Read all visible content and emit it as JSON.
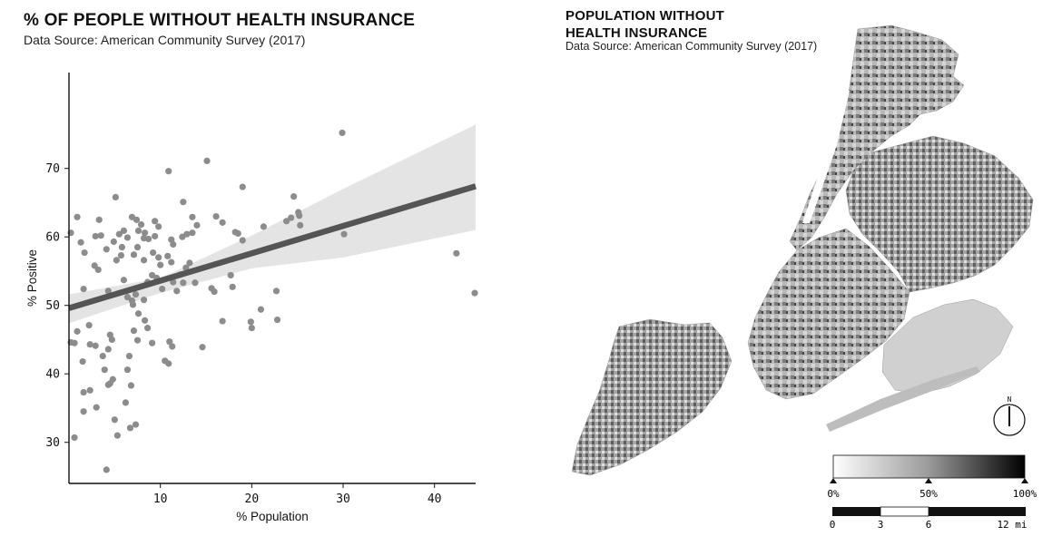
{
  "left_panel": {
    "title": "% OF PEOPLE WITHOUT HEALTH INSURANCE",
    "source": "Data Source: American Community Survey (2017)"
  },
  "right_panel": {
    "title_line1": "POPULATION WITHOUT",
    "title_line2": "HEALTH INSURANCE",
    "source": "Data Source: American Community Survey (2017)",
    "north_label": "N",
    "colorbar_ticks": [
      "0%",
      "50%",
      "100%"
    ],
    "scalebar_ticks": [
      "0",
      "3",
      "6",
      "12 mi"
    ]
  },
  "colors": {
    "points": "#8c8c8c",
    "regression": "#555555",
    "ci_band": "#e4e4e4",
    "axis": "#111111"
  },
  "chart_data": {
    "type": "scatter",
    "title": "% OF PEOPLE WITHOUT HEALTH INSURANCE",
    "xlabel": "% Population",
    "ylabel": "% Positive",
    "xlim": [
      0,
      44.5
    ],
    "ylim": [
      24,
      84
    ],
    "xticks": [
      10,
      20,
      30,
      40
    ],
    "yticks": [
      30,
      40,
      50,
      60,
      70
    ],
    "regression": {
      "x": [
        0,
        44.5
      ],
      "y": [
        49.6,
        67.4
      ]
    },
    "ci_band": {
      "x": [
        0,
        10,
        20,
        30,
        44.5
      ],
      "upper": [
        51.6,
        54.0,
        60.2,
        67.0,
        76.4
      ],
      "lower": [
        47.4,
        51.8,
        55.4,
        57.0,
        61.0
      ]
    },
    "points": [
      [
        0.2,
        60.6
      ],
      [
        0.9,
        62.9
      ],
      [
        1.3,
        59.2
      ],
      [
        1.7,
        57.7
      ],
      [
        1.6,
        52.4
      ],
      [
        0.9,
        46.2
      ],
      [
        0.6,
        44.5
      ],
      [
        0.2,
        44.6
      ],
      [
        0.6,
        30.7
      ],
      [
        1.5,
        41.8
      ],
      [
        1.6,
        37.3
      ],
      [
        1.6,
        34.5
      ],
      [
        2.2,
        47.1
      ],
      [
        2.3,
        44.3
      ],
      [
        2.9,
        44.1
      ],
      [
        3.0,
        35.1
      ],
      [
        2.3,
        37.6
      ],
      [
        2.8,
        55.8
      ],
      [
        3.2,
        55.2
      ],
      [
        3.3,
        62.5
      ],
      [
        2.9,
        60.1
      ],
      [
        3.5,
        60.2
      ],
      [
        4.1,
        58.2
      ],
      [
        4.3,
        52.1
      ],
      [
        3.7,
        42.6
      ],
      [
        3.9,
        40.6
      ],
      [
        4.3,
        43.6
      ],
      [
        4.3,
        38.4
      ],
      [
        4.5,
        45.7
      ],
      [
        4.5,
        38.6
      ],
      [
        4.7,
        45.0
      ],
      [
        4.8,
        39.2
      ],
      [
        4.1,
        26.0
      ],
      [
        5.0,
        33.3
      ],
      [
        5.3,
        31.0
      ],
      [
        5.1,
        65.8
      ],
      [
        4.9,
        59.3
      ],
      [
        5.5,
        60.4
      ],
      [
        5.7,
        57.3
      ],
      [
        5.2,
        56.6
      ],
      [
        5.8,
        58.5
      ],
      [
        6.0,
        60.9
      ],
      [
        6.4,
        59.9
      ],
      [
        6.0,
        53.7
      ],
      [
        6.4,
        51.2
      ],
      [
        6.9,
        50.7
      ],
      [
        6.4,
        40.6
      ],
      [
        6.6,
        42.6
      ],
      [
        6.2,
        35.8
      ],
      [
        6.8,
        38.3
      ],
      [
        6.7,
        32.1
      ],
      [
        7.3,
        32.6
      ],
      [
        7.0,
        50.1
      ],
      [
        7.3,
        51.6
      ],
      [
        7.1,
        46.3
      ],
      [
        7.6,
        48.8
      ],
      [
        7.5,
        44.9
      ],
      [
        7.1,
        57.4
      ],
      [
        7.5,
        58.5
      ],
      [
        7.6,
        60.9
      ],
      [
        6.9,
        62.9
      ],
      [
        7.4,
        62.5
      ],
      [
        7.9,
        61.8
      ],
      [
        8.2,
        59.8
      ],
      [
        8.3,
        60.6
      ],
      [
        8.2,
        56.6
      ],
      [
        8.6,
        53.4
      ],
      [
        8.2,
        50.8
      ],
      [
        8.3,
        47.8
      ],
      [
        8.6,
        46.7
      ],
      [
        9.1,
        44.5
      ],
      [
        8.7,
        59.7
      ],
      [
        9.4,
        62.3
      ],
      [
        9.4,
        60.1
      ],
      [
        9.8,
        61.5
      ],
      [
        9.2,
        57.7
      ],
      [
        9.8,
        57.0
      ],
      [
        9.1,
        54.4
      ],
      [
        9.6,
        54.0
      ],
      [
        10.0,
        55.9
      ],
      [
        10.2,
        52.4
      ],
      [
        10.5,
        41.9
      ],
      [
        10.9,
        41.5
      ],
      [
        11.0,
        44.7
      ],
      [
        11.3,
        44.0
      ],
      [
        10.9,
        69.6
      ],
      [
        11.2,
        59.6
      ],
      [
        11.4,
        58.9
      ],
      [
        10.8,
        57.2
      ],
      [
        11.2,
        56.3
      ],
      [
        11.4,
        53.4
      ],
      [
        11.8,
        52.1
      ],
      [
        12.2,
        54.5
      ],
      [
        12.5,
        53.3
      ],
      [
        12.8,
        55.5
      ],
      [
        13.2,
        56.2
      ],
      [
        12.4,
        60.0
      ],
      [
        12.9,
        60.4
      ],
      [
        12.5,
        65.1
      ],
      [
        13.5,
        62.9
      ],
      [
        13.5,
        60.6
      ],
      [
        14.0,
        61.7
      ],
      [
        13.8,
        53.3
      ],
      [
        14.6,
        43.9
      ],
      [
        15.1,
        71.1
      ],
      [
        15.6,
        52.5
      ],
      [
        15.9,
        52.0
      ],
      [
        16.1,
        63.0
      ],
      [
        16.8,
        62.1
      ],
      [
        16.8,
        47.7
      ],
      [
        17.7,
        54.4
      ],
      [
        17.9,
        52.7
      ],
      [
        18.2,
        60.7
      ],
      [
        18.5,
        60.5
      ],
      [
        19.0,
        67.3
      ],
      [
        19.0,
        59.5
      ],
      [
        19.9,
        47.6
      ],
      [
        20.0,
        46.7
      ],
      [
        21.0,
        49.4
      ],
      [
        21.3,
        61.5
      ],
      [
        22.7,
        52.1
      ],
      [
        22.8,
        47.9
      ],
      [
        23.8,
        62.3
      ],
      [
        24.3,
        62.8
      ],
      [
        24.6,
        65.9
      ],
      [
        25.1,
        63.6
      ],
      [
        25.2,
        63.1
      ],
      [
        25.3,
        61.7
      ],
      [
        29.9,
        75.2
      ],
      [
        30.1,
        60.4
      ],
      [
        42.4,
        57.6
      ],
      [
        44.4,
        51.8
      ]
    ]
  }
}
